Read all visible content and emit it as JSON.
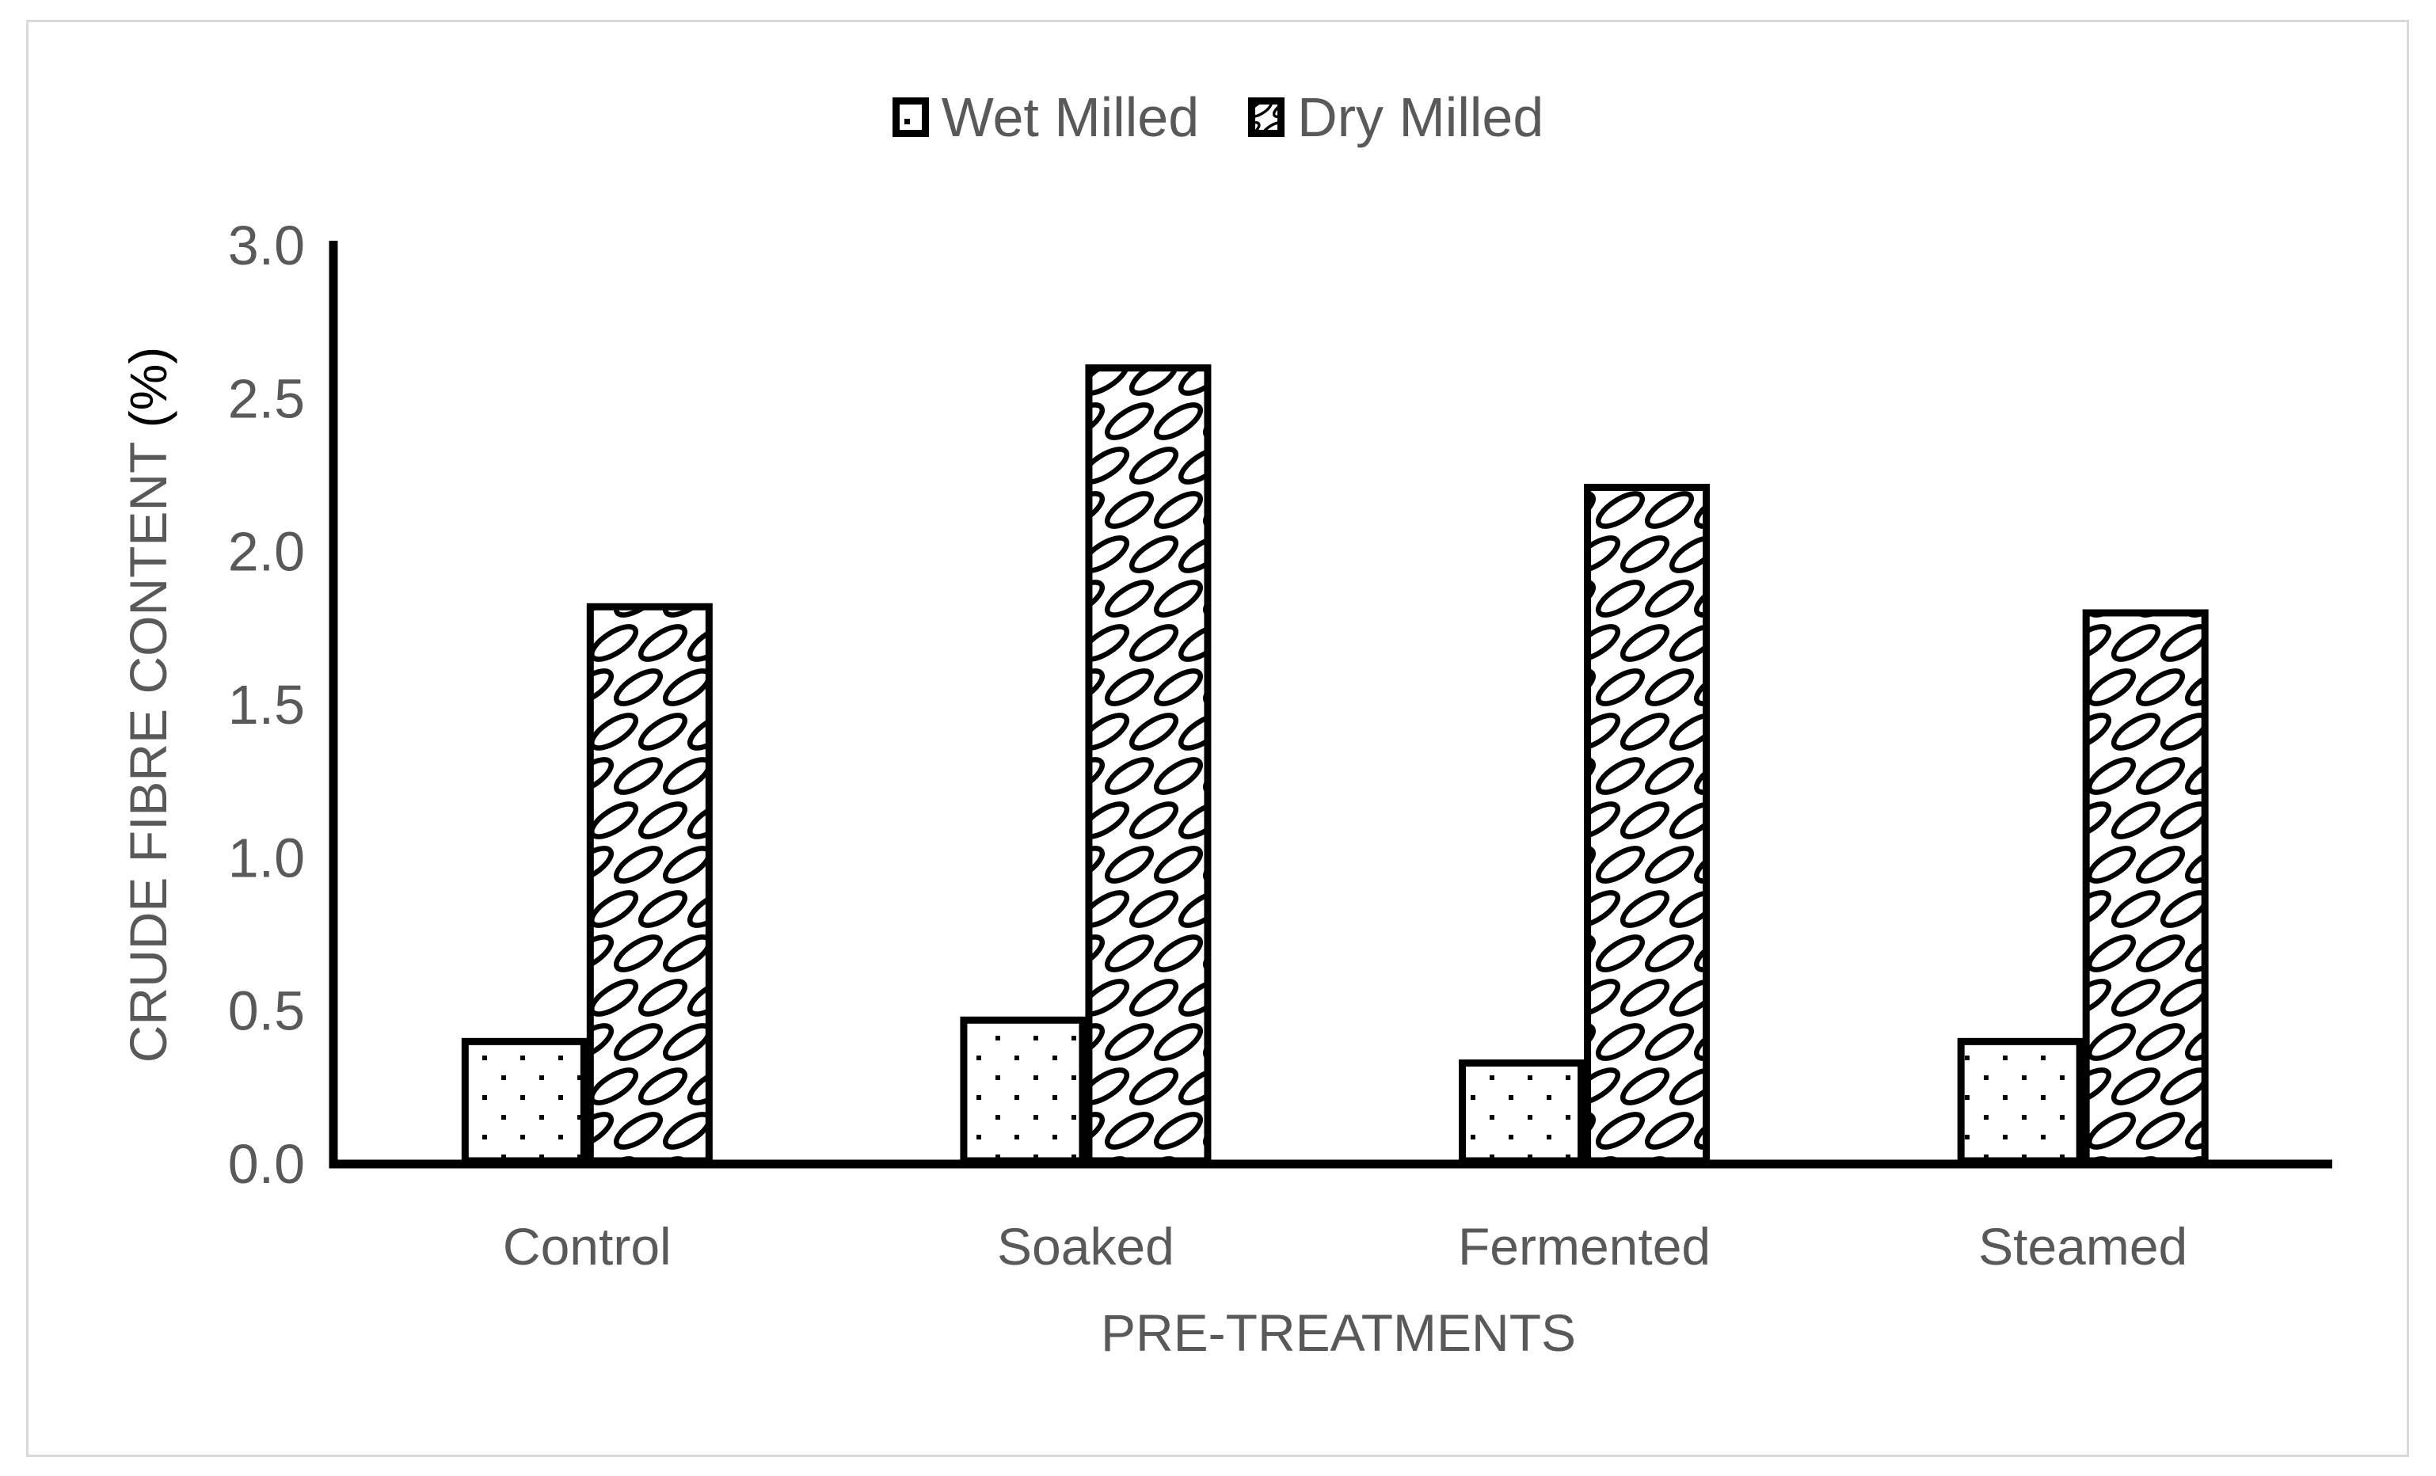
{
  "chart_data": {
    "type": "bar",
    "title": "",
    "categories": [
      "Control",
      "Soaked",
      "Fermented",
      "Steamed"
    ],
    "series": [
      {
        "name": "Wet Milled",
        "pattern": "dots",
        "values": [
          0.4,
          0.47,
          0.33,
          0.4
        ]
      },
      {
        "name": "Dry Milled",
        "pattern": "weave",
        "values": [
          1.82,
          2.6,
          2.21,
          1.8
        ]
      }
    ],
    "xlabel": "PRE-TREATMENTS",
    "ylabel": "CRUDE FIBRE CONTENT (%)",
    "ylim": [
      0.0,
      3.0
    ],
    "ytick_step": 0.5,
    "ytick_labels": [
      "0.0",
      "0.5",
      "1.0",
      "1.5",
      "2.0",
      "2.5",
      "3.0"
    ],
    "legend_position": "top-center",
    "grid": false
  },
  "labels": {
    "ylabel_main": "CRUDE FIBRE CONTENT",
    "ylabel_unit": "(%)"
  },
  "colors": {
    "text": "#595959",
    "axis": "#000000",
    "bar_stroke": "#000000",
    "bar_fill": "#ffffff",
    "frame_border": "#d9d9d9",
    "background": "#ffffff"
  }
}
